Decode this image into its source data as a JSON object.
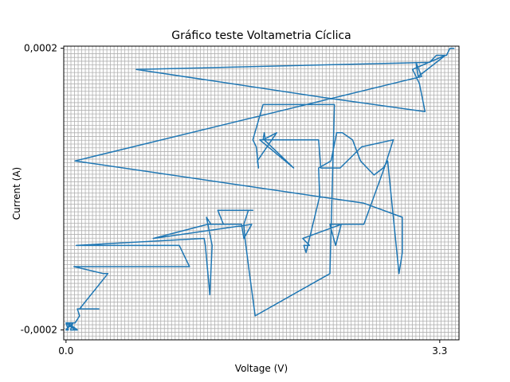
{
  "chart_data": {
    "type": "line",
    "title": "Gráfico teste Voltametria Cíclica",
    "xlabel": "Voltage (V)",
    "ylabel": "Current (A)",
    "xlim": [
      -0.02,
      3.47
    ],
    "ylim": [
      -0.000214,
      0.000203
    ],
    "xticks": [
      {
        "value": 0.0,
        "label": "0.0"
      },
      {
        "value": 3.3,
        "label": "3.3"
      }
    ],
    "yticks": [
      {
        "value": 0.0002,
        "label": "0,0002"
      },
      {
        "value": -0.0002,
        "label": "-0,0002"
      }
    ],
    "grid": true,
    "line_color": "#1f77b4",
    "series": [
      {
        "x": [
          0.0,
          0.02,
          0.0,
          0.04,
          0.0,
          0.06,
          0.0,
          0.08,
          0.02,
          0.1,
          0.04,
          0.06,
          0.08,
          0.12,
          0.1,
          0.29,
          0.1,
          0.12,
          0.37,
          0.33,
          0.07,
          1.09,
          1.0,
          0.09,
          1.22,
          1.23,
          1.27,
          1.29,
          1.24,
          1.28,
          1.55,
          1.57,
          1.64,
          0.77,
          1.25,
          1.39,
          1.34,
          1.65,
          1.61,
          1.57,
          1.58,
          1.62,
          1.67,
          2.33,
          2.37,
          1.74,
          1.65,
          1.68,
          1.7,
          1.69,
          1.86,
          1.74,
          1.75,
          1.76,
          1.71,
          2.01,
          1.75,
          2.23,
          2.25,
          2.42,
          2.61,
          2.89,
          2.81,
          2.63,
          2.33,
          2.38,
          2.43,
          2.09,
          2.15,
          2.1,
          2.12,
          2.24,
          2.23,
          2.34,
          2.39,
          2.44,
          2.53,
          2.6,
          2.66,
          2.72,
          2.8,
          2.84,
          2.94,
          2.97,
          2.97,
          2.63,
          0.08,
          3.14,
          3.09,
          3.11,
          3.35,
          3.06,
          3.12,
          3.17,
          2.28,
          0.62,
          3.21,
          3.27,
          3.32,
          3.36,
          3.39,
          3.43
        ],
        "y": [
          -0.0002,
          -0.0002,
          -0.00019,
          -0.00019,
          -0.0002,
          -0.00019,
          -0.00019,
          -0.0002,
          -0.00019,
          -0.0002,
          -0.0002,
          -0.00019,
          -0.00019,
          -0.00018,
          -0.00017,
          -0.00017,
          -0.00017,
          -0.00017,
          -0.00012,
          -0.00012,
          -0.00011,
          -0.00011,
          -8e-05,
          -8e-05,
          -7e-05,
          -8e-05,
          -0.00015,
          -8e-05,
          -4e-05,
          -5e-05,
          -5e-05,
          -7e-05,
          -5e-05,
          -7e-05,
          -5e-05,
          -5e-05,
          -3e-05,
          -3e-05,
          -3e-05,
          -5e-05,
          -7e-05,
          -0.00012,
          -0.00018,
          -0.00012,
          0.00012,
          0.00012,
          7e-05,
          6e-05,
          3e-05,
          4e-05,
          8e-05,
          7e-05,
          8e-05,
          7e-05,
          7e-05,
          3e-05,
          7e-05,
          7e-05,
          3e-05,
          3e-05,
          6e-05,
          7e-05,
          3e-05,
          -5e-05,
          -5e-05,
          -8e-05,
          -5e-05,
          -7e-05,
          -8e-05,
          -8e-05,
          -9e-05,
          -1e-05,
          3e-05,
          4e-05,
          8e-05,
          8e-05,
          7e-05,
          4e-05,
          3e-05,
          2e-05,
          3e-05,
          4e-05,
          -0.00012,
          -9e-05,
          -4e-05,
          -2e-05,
          4e-05,
          0.00016,
          0.00018,
          0.00016,
          0.00019,
          0.00017,
          0.00015,
          0.00011,
          0.00013,
          0.00017,
          0.00018,
          0.00019,
          0.00019,
          0.00019,
          0.0002,
          0.0002
        ]
      }
    ]
  }
}
